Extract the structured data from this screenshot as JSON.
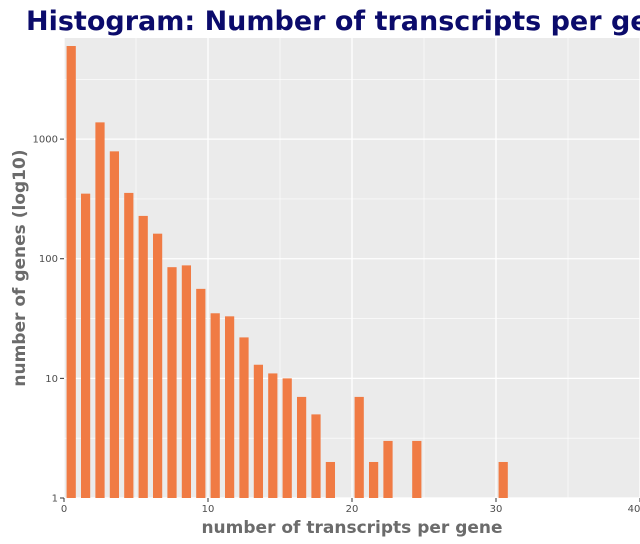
{
  "chart_data": {
    "type": "bar",
    "title": "Histogram: Number of transcripts per gene",
    "xlabel": "number of transcripts per gene",
    "ylabel": "number of genes (log10)",
    "y_scale": "log10",
    "xlim": [
      0,
      40
    ],
    "ylim": [
      1,
      7000
    ],
    "x_ticks": [
      0,
      10,
      20,
      30,
      40
    ],
    "y_ticks": [
      1,
      10,
      100,
      1000
    ],
    "x_tick_labels": [
      "0",
      "10",
      "20",
      "30",
      "40"
    ],
    "y_tick_labels": [
      "1",
      "10",
      "100",
      "1000"
    ],
    "grid": true,
    "bar_color": "#f07b44",
    "panel_background": "#ebebeb",
    "title_color": "#0b0b6b",
    "x": [
      1,
      2,
      3,
      4,
      5,
      6,
      7,
      8,
      9,
      10,
      11,
      12,
      13,
      14,
      15,
      16,
      17,
      18,
      19,
      20,
      21,
      22,
      23,
      25,
      31
    ],
    "values": [
      6000,
      350,
      1380,
      790,
      355,
      228,
      162,
      85,
      88,
      56,
      35,
      33,
      22,
      13,
      11,
      10,
      7,
      5,
      2,
      1,
      7,
      2,
      3,
      3,
      2
    ]
  }
}
